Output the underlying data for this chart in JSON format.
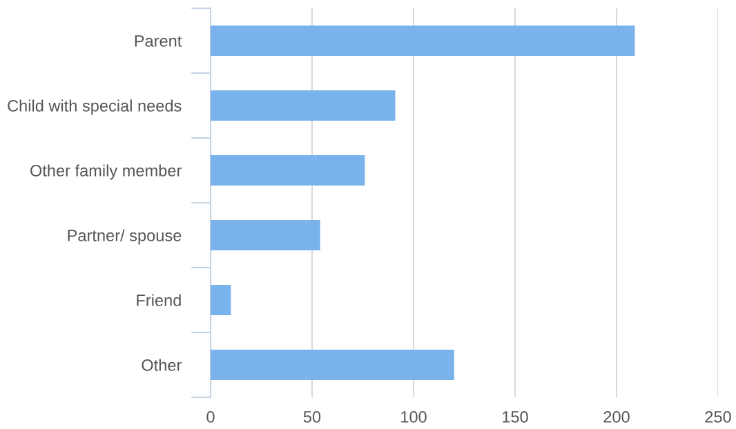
{
  "chart_data": {
    "type": "bar",
    "orientation": "horizontal",
    "categories": [
      "Parent",
      "Child with special needs",
      "Other family member",
      "Partner/ spouse",
      "Friend",
      "Other"
    ],
    "values": [
      209,
      91,
      76,
      54,
      10,
      120
    ],
    "color": "#7ab3ec",
    "xlim": [
      0,
      250
    ],
    "xticks": [
      0,
      50,
      100,
      150,
      200,
      250
    ],
    "grid": "x",
    "legend": false
  }
}
